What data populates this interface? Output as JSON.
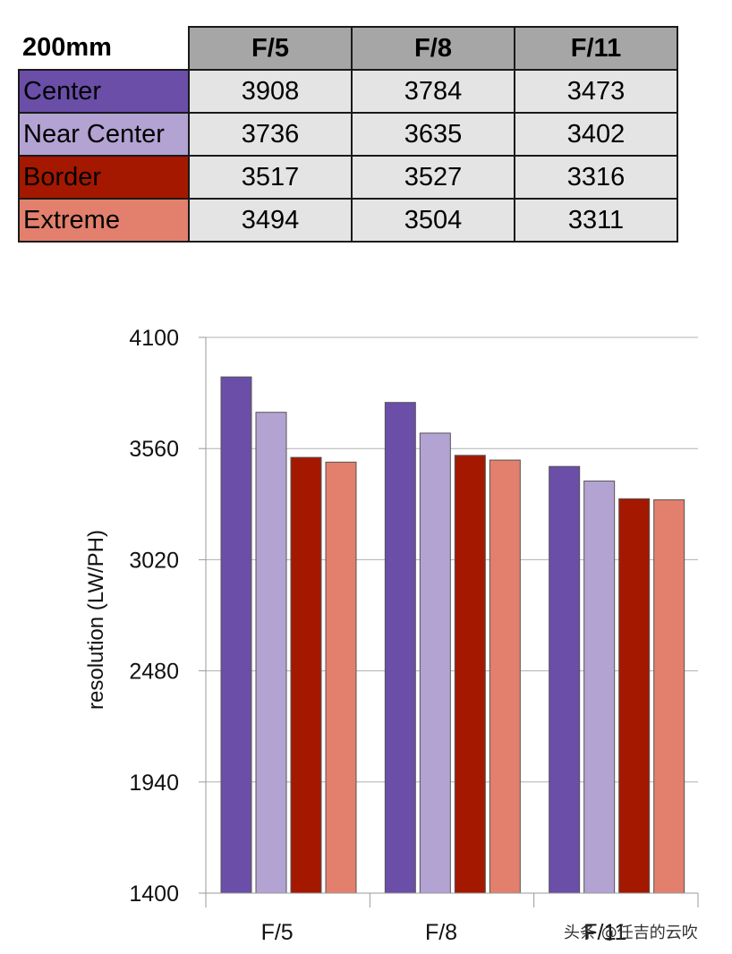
{
  "table": {
    "corner_label": "200mm",
    "columns": [
      "F/5",
      "F/8",
      "F/11"
    ],
    "rows": [
      {
        "label": "Center",
        "color": "#6a4ea8",
        "values": [
          "3908",
          "3784",
          "3473"
        ]
      },
      {
        "label": "Near Center",
        "color": "#b3a3d3",
        "values": [
          "3736",
          "3635",
          "3402"
        ]
      },
      {
        "label": "Border",
        "color": "#a51800",
        "values": [
          "3517",
          "3527",
          "3316"
        ]
      },
      {
        "label": "Extreme",
        "color": "#e2806d",
        "values": [
          "3494",
          "3504",
          "3311"
        ]
      }
    ]
  },
  "chart_data": {
    "type": "bar",
    "categories": [
      "F/5",
      "F/8",
      "F/11"
    ],
    "series": [
      {
        "name": "Center",
        "color": "#6a4ea8",
        "values": [
          3908,
          3784,
          3473
        ]
      },
      {
        "name": "Near Center",
        "color": "#b3a3d3",
        "values": [
          3736,
          3635,
          3402
        ]
      },
      {
        "name": "Border",
        "color": "#a51800",
        "values": [
          3517,
          3527,
          3316
        ]
      },
      {
        "name": "Extreme",
        "color": "#e2806d",
        "values": [
          3494,
          3504,
          3311
        ]
      }
    ],
    "ylabel": "resolution (LW/PH)",
    "ylim": [
      1400,
      4100
    ],
    "yticks": [
      "4100",
      "3560",
      "3020",
      "2480",
      "1940",
      "1400"
    ],
    "grid": true
  },
  "watermark": "头条 @任吉的云吹"
}
